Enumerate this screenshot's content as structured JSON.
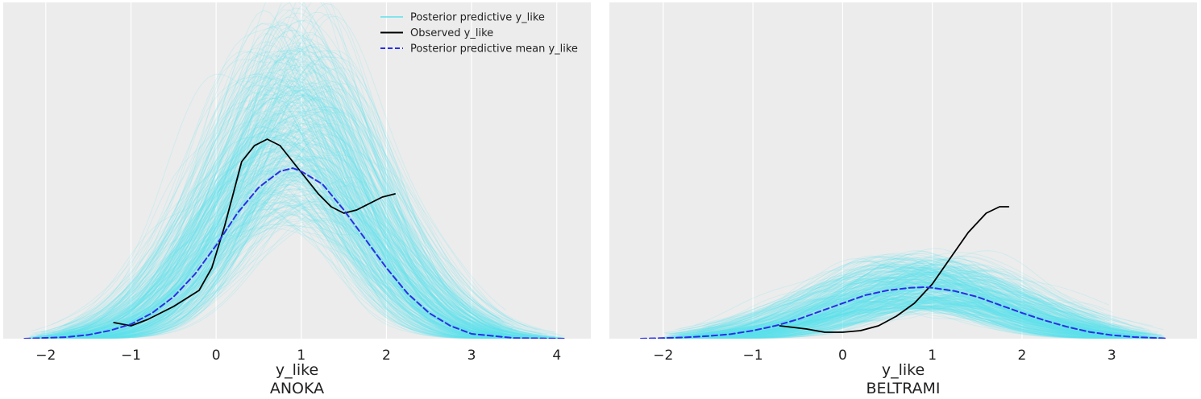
{
  "colors": {
    "background": "#ececec",
    "grid": "#ffffff",
    "predictive": "#5ce1ec",
    "observed": "#000000",
    "mean": "#2a2ee6"
  },
  "legend": {
    "placement": "top-right of first panel",
    "items": [
      {
        "label": "Posterior predictive y_like",
        "style": "predictive"
      },
      {
        "label": "Observed y_like",
        "style": "observed"
      },
      {
        "label": "Posterior predictive mean y_like",
        "style": "mean"
      }
    ]
  },
  "chart_data": [
    {
      "type": "line",
      "title": "ANOKA",
      "xlabel": "y_like",
      "ylabel": "",
      "xlim": [
        -2.5,
        4.4
      ],
      "ylim": [
        0,
        1.0
      ],
      "xticks": [
        -2,
        -1,
        0,
        1,
        2,
        3,
        4
      ],
      "xtick_labels": [
        "−2",
        "−1",
        "0",
        "1",
        "2",
        "3",
        "4"
      ],
      "grid": true,
      "series": [
        {
          "role": "observed",
          "name": "Observed y_like",
          "x": [
            -1.2,
            -1.0,
            -0.8,
            -0.5,
            -0.2,
            -0.05,
            0.1,
            0.2,
            0.3,
            0.45,
            0.6,
            0.75,
            0.9,
            1.05,
            1.2,
            1.35,
            1.5,
            1.65,
            1.8,
            1.95,
            2.1
          ],
          "y": [
            0.05,
            0.04,
            0.06,
            0.1,
            0.15,
            0.22,
            0.35,
            0.45,
            0.55,
            0.6,
            0.62,
            0.6,
            0.55,
            0.5,
            0.45,
            0.41,
            0.39,
            0.4,
            0.42,
            0.44,
            0.45
          ]
        },
        {
          "role": "mean",
          "name": "Posterior predictive mean y_like",
          "x": [
            -2.25,
            -1.75,
            -1.5,
            -1.25,
            -1.0,
            -0.75,
            -0.5,
            -0.25,
            0.0,
            0.25,
            0.5,
            0.75,
            0.9,
            1.0,
            1.25,
            1.5,
            1.75,
            2.0,
            2.25,
            2.5,
            2.75,
            3.0,
            3.5,
            4.1
          ],
          "y": [
            0.0,
            0.005,
            0.012,
            0.025,
            0.045,
            0.08,
            0.13,
            0.2,
            0.29,
            0.39,
            0.47,
            0.52,
            0.53,
            0.52,
            0.48,
            0.4,
            0.31,
            0.22,
            0.14,
            0.08,
            0.04,
            0.015,
            0.002,
            0.0
          ]
        }
      ],
      "predictive_samples": {
        "name": "Posterior predictive y_like",
        "count": 400,
        "x_range": [
          -2.2,
          4.1
        ],
        "center_range": [
          0.55,
          1.25
        ],
        "spread_range": [
          0.65,
          1.05
        ],
        "peak_range": [
          0.38,
          0.95
        ]
      }
    },
    {
      "type": "line",
      "title": "BELTRAMI",
      "xlabel": "y_like",
      "ylabel": "",
      "xlim": [
        -2.6,
        3.95
      ],
      "ylim": [
        0,
        1.0
      ],
      "xticks": [
        -2,
        -1,
        0,
        1,
        2,
        3
      ],
      "xtick_labels": [
        "−2",
        "−1",
        "0",
        "1",
        "2",
        "3"
      ],
      "grid": true,
      "series": [
        {
          "role": "observed",
          "name": "Observed y_like",
          "x": [
            -0.7,
            -0.4,
            -0.2,
            0.0,
            0.2,
            0.4,
            0.6,
            0.8,
            1.0,
            1.2,
            1.4,
            1.6,
            1.75,
            1.85
          ],
          "y": [
            0.04,
            0.03,
            0.02,
            0.02,
            0.025,
            0.04,
            0.07,
            0.11,
            0.17,
            0.25,
            0.33,
            0.39,
            0.41,
            0.41
          ]
        },
        {
          "role": "mean",
          "name": "Posterior predictive mean y_like",
          "x": [
            -2.25,
            -1.75,
            -1.5,
            -1.25,
            -1.0,
            -0.75,
            -0.5,
            -0.25,
            0.0,
            0.25,
            0.5,
            0.75,
            0.9,
            1.0,
            1.25,
            1.5,
            1.75,
            2.0,
            2.25,
            2.5,
            2.75,
            3.0,
            3.25,
            3.6
          ],
          "y": [
            0.0,
            0.004,
            0.008,
            0.014,
            0.025,
            0.04,
            0.06,
            0.085,
            0.11,
            0.135,
            0.15,
            0.158,
            0.16,
            0.158,
            0.148,
            0.13,
            0.105,
            0.08,
            0.057,
            0.037,
            0.021,
            0.011,
            0.005,
            0.001
          ]
        }
      ],
      "predictive_samples": {
        "name": "Posterior predictive y_like",
        "count": 400,
        "x_range": [
          -2.0,
          3.6
        ],
        "center_range": [
          0.4,
          1.4
        ],
        "spread_range": [
          0.7,
          1.2
        ],
        "peak_range": [
          0.09,
          0.25
        ]
      }
    }
  ]
}
